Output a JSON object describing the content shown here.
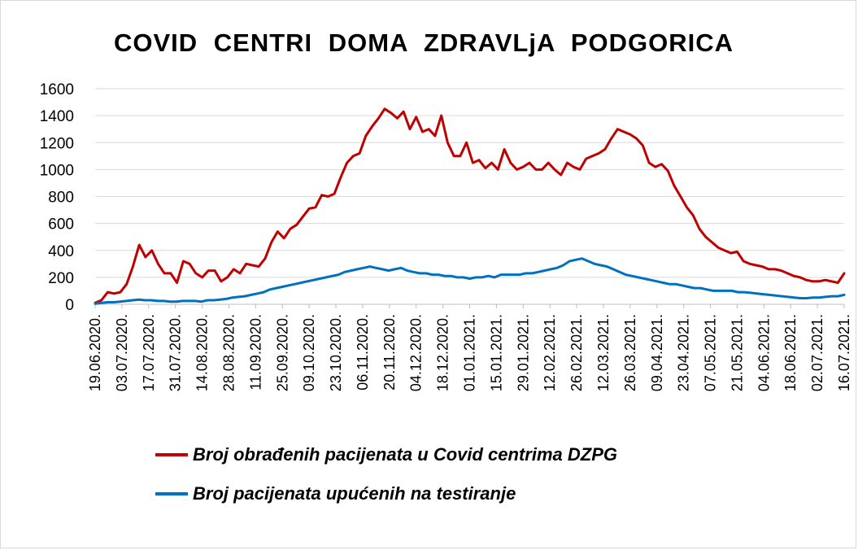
{
  "chart_data": {
    "type": "line",
    "title": "COVID  CENTRI  DOMA  ZDRAVLjA  PODGORICA",
    "xlabel": "",
    "ylabel": "",
    "ylim": [
      0,
      1600
    ],
    "y_ticks": [
      "0",
      "200",
      "400",
      "600",
      "800",
      "1000",
      "1200",
      "1400",
      "1600"
    ],
    "x_tick_labels": [
      "19.06.2020.",
      "03.07.2020.",
      "17.07.2020.",
      "31.07.2020.",
      "14.08.2020.",
      "28.08.2020.",
      "11.09.2020.",
      "25.09.2020.",
      "09.10.2020.",
      "23.10.2020.",
      "06.11.2020.",
      "20.11.2020.",
      "04.12.2020.",
      "18.12.2020.",
      "01.01.2021.",
      "15.01.2021.",
      "29.01.2021.",
      "12.02.2021.",
      "26.02.2021.",
      "12.03.2021.",
      "26.03.2021.",
      "09.04.2021.",
      "23.04.2021.",
      "07.05.2021.",
      "21.05.2021.",
      "04.06.2021.",
      "18.06.2021.",
      "02.07.2021.",
      "16.07.2021."
    ],
    "grid": true,
    "legend_position": "bottom",
    "series": [
      {
        "name": "Broj obrađenih pacijenata u Covid centrima DZPG",
        "color": "#c00000",
        "values": [
          10,
          30,
          90,
          80,
          90,
          150,
          280,
          440,
          350,
          400,
          300,
          230,
          230,
          160,
          320,
          300,
          230,
          200,
          250,
          250,
          170,
          200,
          260,
          230,
          300,
          290,
          280,
          340,
          460,
          540,
          490,
          560,
          590,
          650,
          710,
          720,
          810,
          800,
          820,
          940,
          1050,
          1100,
          1120,
          1250,
          1320,
          1380,
          1450,
          1420,
          1380,
          1430,
          1300,
          1390,
          1280,
          1300,
          1250,
          1400,
          1200,
          1100,
          1100,
          1200,
          1050,
          1070,
          1010,
          1050,
          1000,
          1150,
          1050,
          1000,
          1020,
          1050,
          1000,
          1000,
          1050,
          1000,
          960,
          1050,
          1020,
          1000,
          1080,
          1100,
          1120,
          1150,
          1230,
          1300,
          1280,
          1260,
          1230,
          1180,
          1050,
          1020,
          1040,
          990,
          880,
          800,
          720,
          660,
          560,
          500,
          460,
          420,
          400,
          380,
          390,
          320,
          300,
          290,
          280,
          260,
          260,
          250,
          230,
          210,
          200,
          180,
          170,
          170,
          180,
          170,
          160,
          230
        ]
      },
      {
        "name": "Broj pacijenata upućenih na testiranje",
        "color": "#0070c0",
        "values": [
          5,
          10,
          15,
          15,
          20,
          25,
          30,
          35,
          30,
          30,
          25,
          25,
          20,
          20,
          25,
          25,
          25,
          20,
          30,
          30,
          35,
          40,
          50,
          55,
          60,
          70,
          80,
          90,
          110,
          120,
          130,
          140,
          150,
          160,
          170,
          180,
          190,
          200,
          210,
          220,
          240,
          250,
          260,
          270,
          280,
          270,
          260,
          250,
          260,
          270,
          250,
          240,
          230,
          230,
          220,
          220,
          210,
          210,
          200,
          200,
          190,
          200,
          200,
          210,
          200,
          220,
          220,
          220,
          220,
          230,
          230,
          240,
          250,
          260,
          270,
          290,
          320,
          330,
          340,
          320,
          300,
          290,
          280,
          260,
          240,
          220,
          210,
          200,
          190,
          180,
          170,
          160,
          150,
          150,
          140,
          130,
          120,
          120,
          110,
          100,
          100,
          100,
          100,
          90,
          90,
          85,
          80,
          75,
          70,
          65,
          60,
          55,
          50,
          45,
          45,
          50,
          50,
          55,
          60,
          60,
          70
        ]
      }
    ]
  }
}
